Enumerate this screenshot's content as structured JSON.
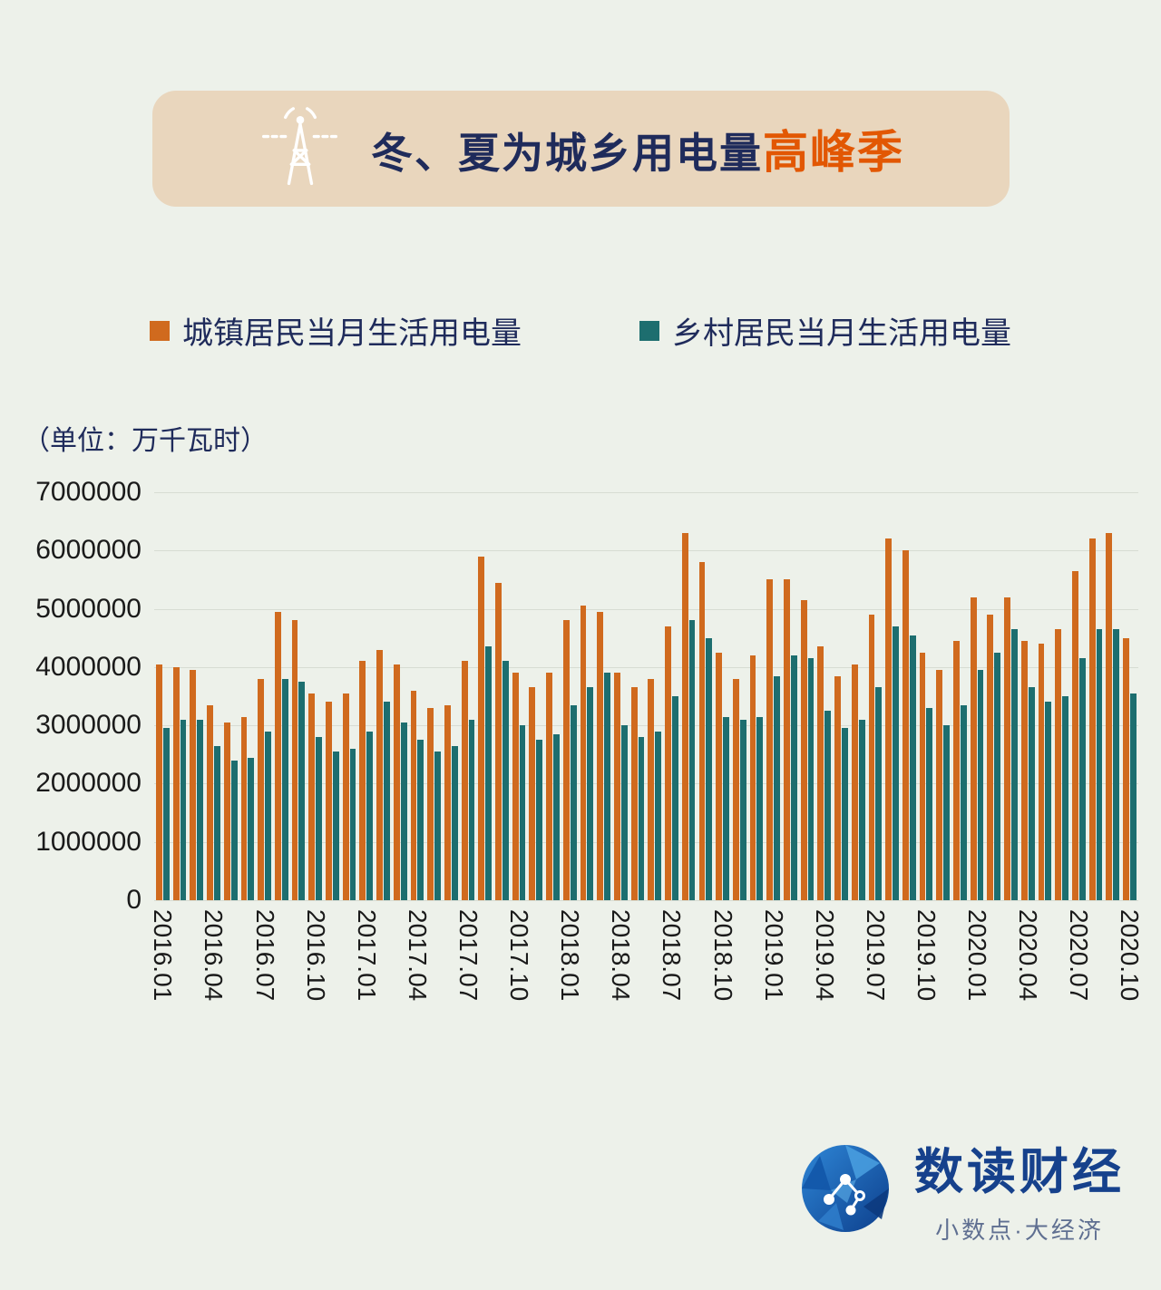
{
  "header": {
    "title_main": "冬、夏为城乡用电量",
    "title_accent": "高峰季"
  },
  "legend": [
    {
      "label": "城镇居民当月生活用电量",
      "color": "#d06a1e"
    },
    {
      "label": "乡村居民当月生活用电量",
      "color": "#1d6e6f"
    }
  ],
  "unit_label": "（单位：万千瓦时）",
  "chart_data": {
    "type": "bar",
    "title": "冬、夏为城乡用电量高峰季",
    "ylabel": "万千瓦时",
    "ylim": [
      0,
      7000000
    ],
    "yticks": [
      7000000,
      6000000,
      5000000,
      4000000,
      3000000,
      2000000,
      1000000,
      0
    ],
    "grid": true,
    "legend_position": "top",
    "xtick_every": 3,
    "categories": [
      "2016.01",
      "2016.02",
      "2016.03",
      "2016.04",
      "2016.05",
      "2016.06",
      "2016.07",
      "2016.08",
      "2016.09",
      "2016.10",
      "2016.11",
      "2016.12",
      "2017.01",
      "2017.02",
      "2017.03",
      "2017.04",
      "2017.05",
      "2017.06",
      "2017.07",
      "2017.08",
      "2017.09",
      "2017.10",
      "2017.11",
      "2017.12",
      "2018.01",
      "2018.02",
      "2018.03",
      "2018.04",
      "2018.05",
      "2018.06",
      "2018.07",
      "2018.08",
      "2018.09",
      "2018.10",
      "2018.11",
      "2018.12",
      "2019.01",
      "2019.02",
      "2019.03",
      "2019.04",
      "2019.05",
      "2019.06",
      "2019.07",
      "2019.08",
      "2019.09",
      "2019.10",
      "2019.11",
      "2019.12",
      "2020.01",
      "2020.02",
      "2020.03",
      "2020.04",
      "2020.05",
      "2020.06",
      "2020.07",
      "2020.08",
      "2020.09",
      "2020.10"
    ],
    "series": [
      {
        "name": "城镇居民当月生活用电量",
        "color": "#d06a1e",
        "values": [
          4050000,
          4000000,
          3950000,
          3350000,
          3050000,
          3150000,
          3800000,
          4950000,
          4800000,
          3550000,
          3400000,
          3550000,
          4100000,
          4300000,
          4050000,
          3600000,
          3300000,
          3350000,
          4100000,
          5900000,
          5450000,
          3900000,
          3650000,
          3900000,
          4800000,
          5050000,
          4950000,
          3900000,
          3650000,
          3800000,
          4700000,
          6300000,
          5800000,
          4250000,
          3800000,
          4200000,
          5500000,
          5500000,
          5150000,
          4350000,
          3850000,
          4050000,
          4900000,
          6200000,
          6000000,
          4250000,
          3950000,
          4450000,
          5200000,
          4900000,
          5200000,
          4450000,
          4400000,
          4650000,
          5650000,
          6200000,
          6300000,
          4500000
        ]
      },
      {
        "name": "乡村居民当月生活用电量",
        "color": "#1d6e6f",
        "values": [
          2950000,
          3100000,
          3100000,
          2650000,
          2400000,
          2450000,
          2900000,
          3800000,
          3750000,
          2800000,
          2550000,
          2600000,
          2900000,
          3400000,
          3050000,
          2750000,
          2550000,
          2650000,
          3100000,
          4350000,
          4100000,
          3000000,
          2750000,
          2850000,
          3350000,
          3650000,
          3900000,
          3000000,
          2800000,
          2900000,
          3500000,
          4800000,
          4500000,
          3150000,
          3100000,
          3150000,
          3850000,
          4200000,
          4150000,
          3250000,
          2950000,
          3100000,
          3650000,
          4700000,
          4550000,
          3300000,
          3000000,
          3350000,
          3950000,
          4250000,
          4650000,
          3650000,
          3400000,
          3500000,
          4150000,
          4650000,
          4650000,
          3550000
        ]
      }
    ]
  },
  "footer": {
    "brand": "数读财经",
    "tagline": "小数点·大经济"
  }
}
